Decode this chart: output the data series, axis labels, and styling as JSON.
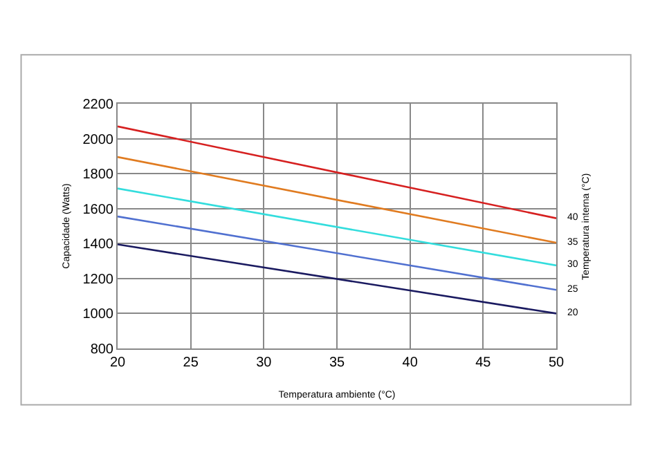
{
  "chart_data": {
    "type": "line",
    "xlabel": "Temperatura ambiente (°C)",
    "ylabel": "Capacidade (Watts)",
    "y2label": "Temperatura interna (°C)",
    "x": [
      20,
      50
    ],
    "xlim": [
      20,
      50
    ],
    "xticks": [
      20,
      25,
      30,
      35,
      40,
      45,
      50
    ],
    "ylim": [
      800,
      2200
    ],
    "yticks": [
      800,
      1000,
      1200,
      1400,
      1600,
      1800,
      2000,
      2200
    ],
    "grid": true,
    "legend": false,
    "marker": "none",
    "line_style": "solid",
    "series": [
      {
        "name": "40",
        "color": "#d62020",
        "values": [
          2070,
          1545
        ]
      },
      {
        "name": "35",
        "color": "#e07b20",
        "values": [
          1895,
          1405
        ]
      },
      {
        "name": "30",
        "color": "#33dddd",
        "values": [
          1715,
          1275
        ]
      },
      {
        "name": "25",
        "color": "#5070d0",
        "values": [
          1555,
          1135
        ]
      },
      {
        "name": "20",
        "color": "#1a1a60",
        "values": [
          1395,
          1000
        ]
      }
    ]
  }
}
